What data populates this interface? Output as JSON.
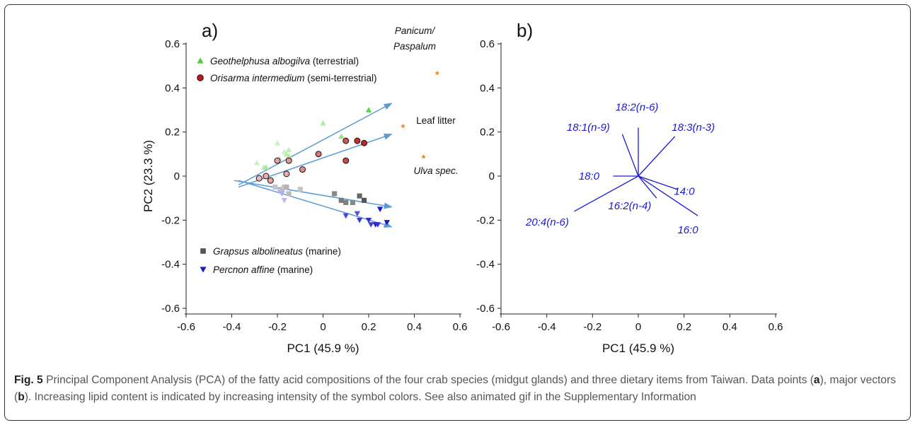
{
  "figure": {
    "caption_label": "Fig. 5",
    "caption_text": " Principal Component Analysis (PCA) of the fatty acid compositions of the four crab species (midgut glands) and three dietary items from Taiwan. Data points (a), major vectors (b). Increasing lipid content is indicated by increasing intensity of the symbol colors. See also animated gif in the Supplementary Information"
  },
  "chart_data": [
    {
      "type": "scatter",
      "panel_label": "a)",
      "xlabel": "PC1 (45.9 %)",
      "ylabel": "PC2 (23.3 %)",
      "xlim": [
        -0.6,
        0.6
      ],
      "ylim": [
        -0.6,
        0.6
      ],
      "xticks": [
        "-0.6",
        "-0.4",
        "-0.2",
        "0",
        "0.2",
        "0.4",
        "0.6"
      ],
      "yticks": [
        "0.6",
        "0.4",
        "0.2",
        "0",
        "-0.2",
        "-0.4",
        "-0.6"
      ],
      "legend_position": "top-left and bottom-left",
      "series": [
        {
          "name": "Geothelphusa albogilva",
          "habitat": "(terrestrial)",
          "marker": "triangle-up",
          "color": "#4ecc3c",
          "points": [
            [
              -0.29,
              0.06
            ],
            [
              -0.26,
              0.04
            ],
            [
              -0.25,
              0.04
            ],
            [
              -0.2,
              0.15
            ],
            [
              -0.19,
              0.08
            ],
            [
              -0.17,
              0.11
            ],
            [
              -0.16,
              0.1
            ],
            [
              -0.15,
              0.12
            ],
            [
              -0.15,
              0.09
            ],
            [
              0,
              0.24
            ],
            [
              0.08,
              0.18
            ],
            [
              0.2,
              0.3
            ]
          ],
          "intensity": [
            0.3,
            0.35,
            0.5,
            0.3,
            0.35,
            0.3,
            0.4,
            0.35,
            0.45,
            0.45,
            0.6,
            0.9
          ]
        },
        {
          "name": "Orisarma intermedium",
          "habitat": "(semi-terrestrial)",
          "marker": "circle",
          "color": "#c21818",
          "points": [
            [
              -0.28,
              -0.01
            ],
            [
              -0.25,
              0.0
            ],
            [
              -0.23,
              -0.02
            ],
            [
              -0.2,
              0.07
            ],
            [
              -0.16,
              0.01
            ],
            [
              -0.15,
              0.07
            ],
            [
              -0.09,
              0.03
            ],
            [
              -0.02,
              0.1
            ],
            [
              0.1,
              0.16
            ],
            [
              0.1,
              0.07
            ],
            [
              0.15,
              0.16
            ],
            [
              0.18,
              0.15
            ]
          ],
          "intensity": [
            0.3,
            0.35,
            0.4,
            0.4,
            0.35,
            0.45,
            0.5,
            0.6,
            0.75,
            0.8,
            0.9,
            0.95
          ]
        },
        {
          "name": "Grapsus albolineatus",
          "habitat": "(marine)",
          "marker": "square",
          "color": "#555555",
          "points": [
            [
              -0.21,
              -0.05
            ],
            [
              -0.18,
              -0.06
            ],
            [
              -0.17,
              -0.05
            ],
            [
              -0.16,
              -0.05
            ],
            [
              -0.15,
              -0.08
            ],
            [
              -0.1,
              -0.06
            ],
            [
              0.05,
              -0.08
            ],
            [
              0.08,
              -0.11
            ],
            [
              0.1,
              -0.12
            ],
            [
              0.13,
              -0.12
            ],
            [
              0.16,
              -0.09
            ],
            [
              0.18,
              -0.11
            ]
          ],
          "intensity": [
            0.35,
            0.4,
            0.35,
            0.45,
            0.4,
            0.35,
            0.7,
            0.8,
            0.75,
            0.7,
            0.9,
            1.0
          ]
        },
        {
          "name": "Percnon affine",
          "habitat": "(marine)",
          "marker": "triangle-down",
          "color": "#1a1acc",
          "points": [
            [
              -0.19,
              -0.07
            ],
            [
              -0.18,
              -0.08
            ],
            [
              -0.17,
              -0.11
            ],
            [
              0.1,
              -0.18
            ],
            [
              0.15,
              -0.17
            ],
            [
              0.16,
              -0.2
            ],
            [
              0.2,
              -0.2
            ],
            [
              0.21,
              -0.22
            ],
            [
              0.23,
              -0.22
            ],
            [
              0.25,
              -0.15
            ],
            [
              0.24,
              -0.22
            ],
            [
              0.28,
              -0.21
            ]
          ],
          "intensity": [
            0.3,
            0.35,
            0.3,
            0.8,
            0.75,
            0.85,
            0.9,
            0.85,
            0.95,
            1.0,
            0.9,
            1.0
          ]
        },
        {
          "name": "Dietary items",
          "marker": "asterisk",
          "color": "#e8861a",
          "points": [
            [
              0.5,
              0.46
            ],
            [
              0.35,
              0.22
            ],
            [
              0.44,
              0.08
            ]
          ],
          "labels": [
            "Panicum/\nPaspalum",
            "Leaf litter",
            "Ulva spec."
          ]
        }
      ],
      "vectors": [
        {
          "from": [
            -0.37,
            -0.04
          ],
          "to": [
            0.3,
            0.33
          ]
        },
        {
          "from": [
            -0.37,
            -0.05
          ],
          "to": [
            0.3,
            0.19
          ]
        },
        {
          "from": [
            -0.39,
            -0.02
          ],
          "to": [
            0.3,
            -0.14
          ]
        },
        {
          "from": [
            -0.37,
            -0.02
          ],
          "to": [
            0.3,
            -0.23
          ]
        }
      ],
      "colors": {
        "vector": "#5b9bd5",
        "axis": "#222222"
      }
    },
    {
      "type": "line",
      "panel_label": "b)",
      "xlabel": "PC1 (45.9 %)",
      "ylabel": "",
      "xlim": [
        -0.6,
        0.6
      ],
      "ylim": [
        -0.6,
        0.6
      ],
      "xticks": [
        "-0.6",
        "-0.4",
        "-0.2",
        "0",
        "0.2",
        "0.4",
        "0.6"
      ],
      "yticks": [
        "0.6",
        "0.4",
        "0.2",
        "0",
        "-0.2",
        "-0.4",
        "-0.6"
      ],
      "vectors": [
        {
          "label": "18:2(n-6)",
          "x": 0.0,
          "y": 0.22
        },
        {
          "label": "18:1(n-9)",
          "x": -0.07,
          "y": 0.19
        },
        {
          "label": "18:3(n-3)",
          "x": 0.16,
          "y": 0.18
        },
        {
          "label": "18:0",
          "x": -0.11,
          "y": 0.0
        },
        {
          "label": "14:0",
          "x": 0.17,
          "y": -0.06
        },
        {
          "label": "16:2(n-4)",
          "x": 0.08,
          "y": -0.1
        },
        {
          "label": "20:4(n-6)",
          "x": -0.28,
          "y": -0.16
        },
        {
          "label": "16:0",
          "x": 0.26,
          "y": -0.18
        }
      ],
      "colors": {
        "vector": "#1a1ad4",
        "axis": "#222222"
      }
    }
  ]
}
